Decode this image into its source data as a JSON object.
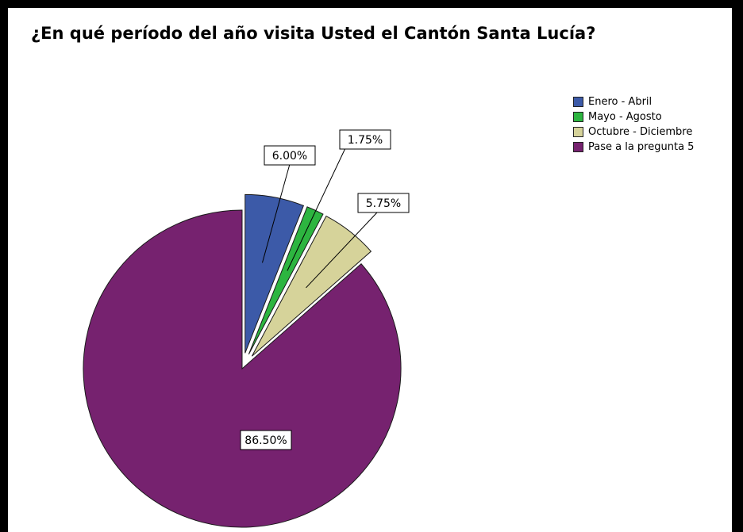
{
  "chart_data": {
    "type": "pie",
    "title": "¿En qué período del año visita Usted el Cantón Santa Lucía?",
    "categories": [
      "Enero - Abril",
      "Mayo - Agosto",
      "Octubre - Diciembre",
      "Pase a la pregunta 5"
    ],
    "values": [
      6.0,
      1.75,
      5.75,
      86.5
    ],
    "labels": [
      "6.00%",
      "1.75%",
      "5.75%",
      "86.50%"
    ],
    "colors": [
      "#3c5aa8",
      "#2db540",
      "#d6d39a",
      "#76226f"
    ],
    "exploded": [
      true,
      true,
      true,
      false
    ],
    "legend_position": "top-right"
  }
}
